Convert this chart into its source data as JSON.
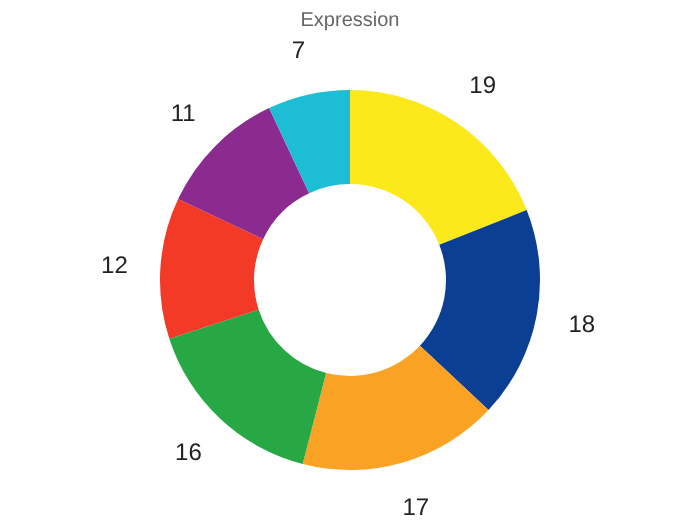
{
  "chart_data": {
    "type": "donut",
    "title": "Expression",
    "categories": [
      null,
      null,
      null,
      null,
      null,
      null,
      null
    ],
    "values": [
      19,
      18,
      17,
      16,
      12,
      11,
      7
    ],
    "colors": [
      "#fbe91c",
      "#0a3f94",
      "#f9a224",
      "#28a845",
      "#f23a26",
      "#8b2a8f",
      "#1ebdd6"
    ],
    "data_labels": true,
    "legend": false
  }
}
